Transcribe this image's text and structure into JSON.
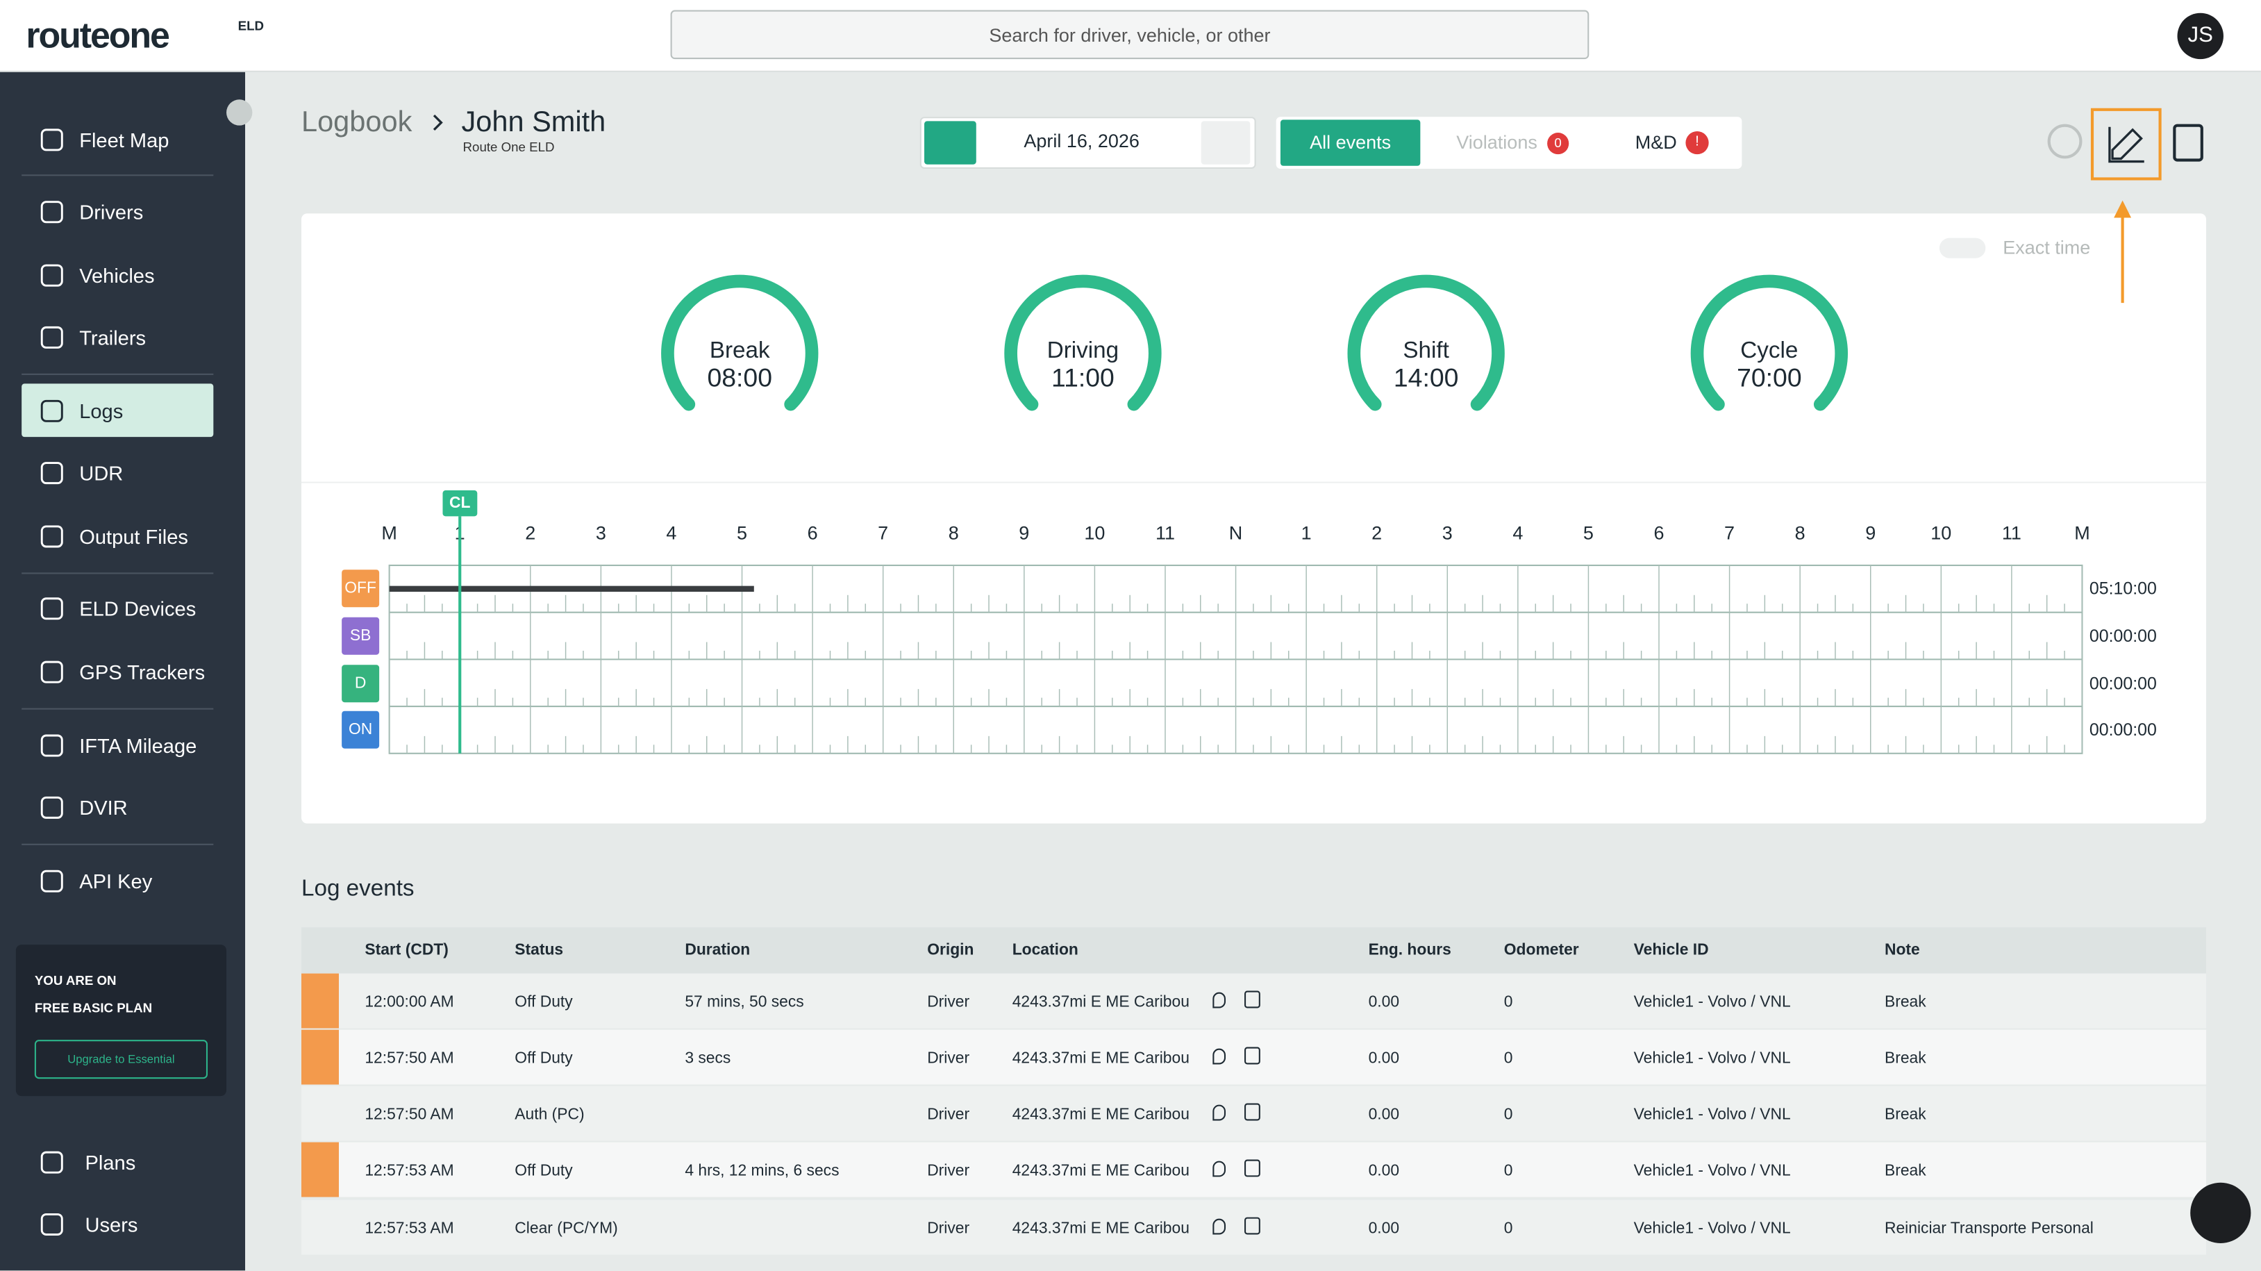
{
  "header": {
    "logo": "routeone",
    "logo_badge": "ELD",
    "search_placeholder": "Search for driver, vehicle, or other",
    "avatar": "JS"
  },
  "sidebar": {
    "items": [
      "Fleet Map",
      "Drivers",
      "Vehicles",
      "Trailers",
      "Logs",
      "UDR",
      "Output Files",
      "ELD Devices",
      "GPS Trackers",
      "IFTA Mileage",
      "DVIR",
      "API Key",
      "Plans",
      "Users"
    ],
    "plan": {
      "line1": "YOU ARE ON",
      "line2": "FREE BASIC PLAN",
      "button": "Upgrade to Essential"
    }
  },
  "breadcrumb": {
    "section": "Logbook",
    "driver": "John Smith",
    "subtitle": "Route One ELD"
  },
  "date": "April 16, 2026",
  "tabs": {
    "all": "All events",
    "violations": "Violations",
    "violations_count": "0",
    "md": "M&D",
    "md_badge": "!"
  },
  "exact_time": "Exact time",
  "gauges": [
    {
      "label": "Break",
      "value": "08:00"
    },
    {
      "label": "Driving",
      "value": "11:00"
    },
    {
      "label": "Shift",
      "value": "14:00"
    },
    {
      "label": "Cycle",
      "value": "70:00"
    }
  ],
  "timeline": {
    "marker": "CL",
    "hours": [
      "M",
      "1",
      "2",
      "3",
      "4",
      "5",
      "6",
      "7",
      "8",
      "9",
      "10",
      "11",
      "N",
      "1",
      "2",
      "3",
      "4",
      "5",
      "6",
      "7",
      "8",
      "9",
      "10",
      "11",
      "M"
    ],
    "statuses": [
      {
        "code": "OFF",
        "total": "05:10:00"
      },
      {
        "code": "SB",
        "total": "00:00:00"
      },
      {
        "code": "D",
        "total": "00:00:00"
      },
      {
        "code": "ON",
        "total": "00:00:00"
      }
    ]
  },
  "log_events": {
    "title": "Log events",
    "columns": [
      "Start (CDT)",
      "Status",
      "Duration",
      "Origin",
      "Location",
      "Eng. hours",
      "Odometer",
      "Vehicle ID",
      "Note"
    ],
    "rows": [
      [
        "12:00:00 AM",
        "Off Duty",
        "57 mins, 50 secs",
        "Driver",
        "4243.37mi E ME Caribou",
        "0.00",
        "0",
        "Vehicle1 - Volvo / VNL",
        "Break"
      ],
      [
        "12:57:50 AM",
        "Off Duty",
        "3 secs",
        "Driver",
        "4243.37mi E ME Caribou",
        "0.00",
        "0",
        "Vehicle1 - Volvo / VNL",
        "Break"
      ],
      [
        "12:57:50 AM",
        "Auth (PC)",
        "",
        "Driver",
        "4243.37mi E ME Caribou",
        "0.00",
        "0",
        "Vehicle1 - Volvo / VNL",
        "Break"
      ],
      [
        "12:57:53 AM",
        "Off Duty",
        "4 hrs, 12 mins, 6 secs",
        "Driver",
        "4243.37mi E ME Caribou",
        "0.00",
        "0",
        "Vehicle1 - Volvo / VNL",
        "Break"
      ],
      [
        "12:57:53 AM",
        "Clear (PC/YM)",
        "",
        "Driver",
        "4243.37mi E ME Caribou",
        "0.00",
        "0",
        "Vehicle1 - Volvo / VNL",
        "Reiniciar Transporte Personal"
      ]
    ]
  }
}
